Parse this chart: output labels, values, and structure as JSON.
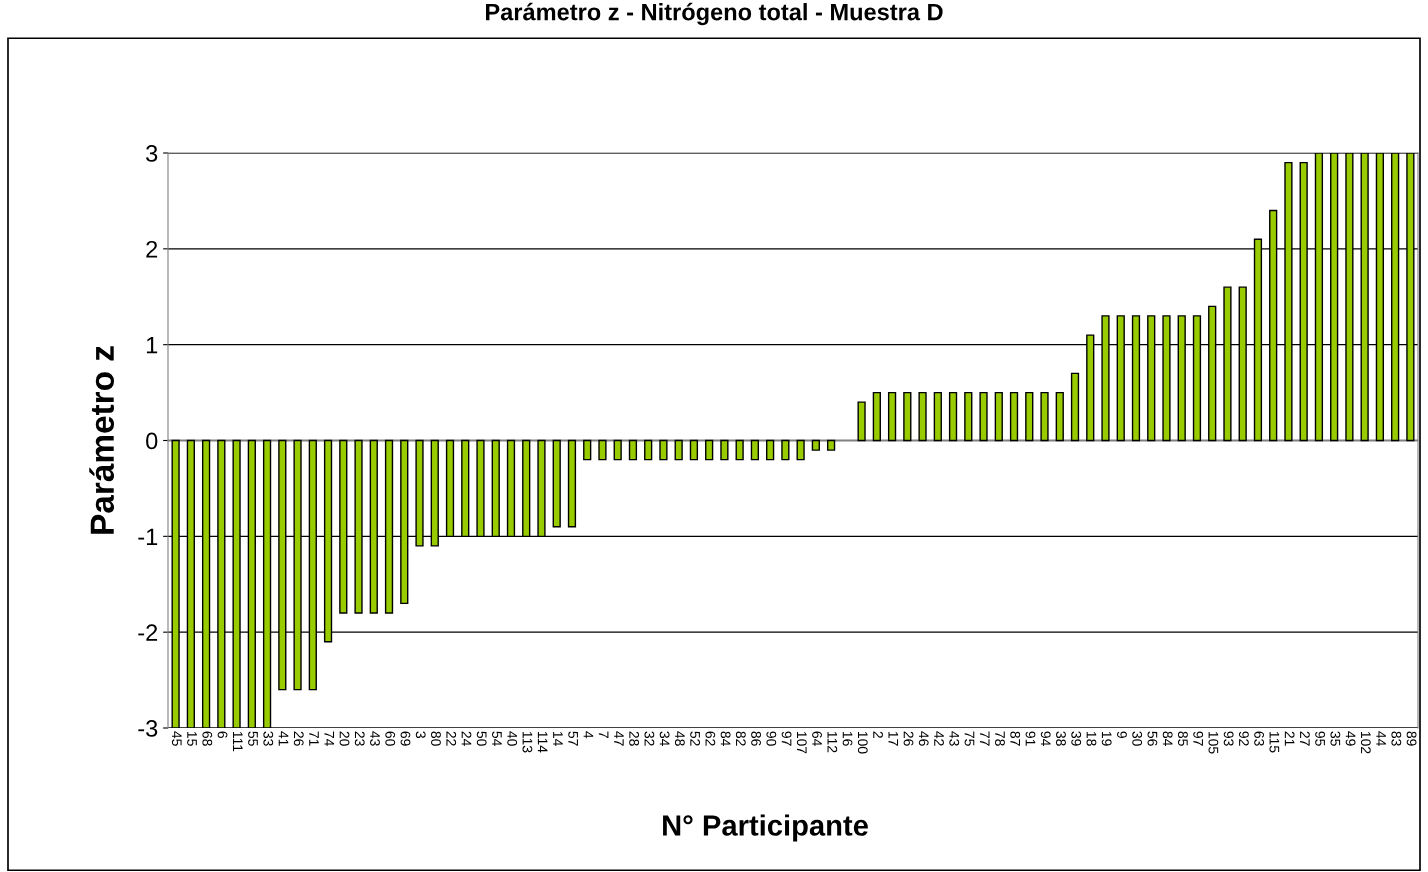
{
  "chart_data": {
    "type": "bar",
    "title": "Parámetro z - Nitrógeno total - Muestra D",
    "xlabel": "N° Participante",
    "ylabel": "Parámetro z",
    "categories": [
      "45",
      "15",
      "68",
      "6",
      "111",
      "55",
      "33",
      "41",
      "26",
      "71",
      "74",
      "20",
      "23",
      "43",
      "60",
      "69",
      "3",
      "80",
      "22",
      "24",
      "50",
      "54",
      "40",
      "113",
      "114",
      "14",
      "57",
      "4",
      "7",
      "47",
      "28",
      "32",
      "34",
      "48",
      "52",
      "62",
      "84",
      "82",
      "86",
      "90",
      "97",
      "107",
      "64",
      "112",
      "16",
      "100",
      "2",
      "17",
      "26",
      "46",
      "42",
      "43",
      "75",
      "77",
      "78",
      "87",
      "91",
      "94",
      "38",
      "39",
      "18",
      "19",
      "9",
      "30",
      "56",
      "84",
      "85",
      "97",
      "105",
      "93",
      "92",
      "63",
      "115",
      "21",
      "27",
      "95",
      "35",
      "49",
      "102",
      "44",
      "83",
      "89"
    ],
    "values": [
      -3,
      -3,
      -3,
      -3,
      -3,
      -3,
      -3,
      -2.6,
      -2.6,
      -2.6,
      -2.1,
      -1.8,
      -1.8,
      -1.8,
      -1.8,
      -1.7,
      -1.1,
      -1.1,
      -1,
      -1,
      -1,
      -1,
      -1,
      -1,
      -1,
      -0.9,
      -0.9,
      -0.2,
      -0.2,
      -0.2,
      -0.2,
      -0.2,
      -0.2,
      -0.2,
      -0.2,
      -0.2,
      -0.2,
      -0.2,
      -0.2,
      -0.2,
      -0.2,
      -0.2,
      -0.1,
      -0.1,
      null,
      0.4,
      0.5,
      0.5,
      0.5,
      0.5,
      0.5,
      0.5,
      0.5,
      0.5,
      0.5,
      0.5,
      0.5,
      0.5,
      0.5,
      0.7,
      1.1,
      1.3,
      1.3,
      1.3,
      1.3,
      1.3,
      1.3,
      1.3,
      1.4,
      1.6,
      1.6,
      2.1,
      2.4,
      2.9,
      2.9,
      3,
      3,
      3,
      3,
      3,
      3,
      3
    ],
    "color": "#99cc00",
    "ylim": [
      -3,
      3
    ],
    "yticks": [
      -3,
      -2,
      -1,
      0,
      1,
      2,
      3
    ],
    "grid": "y",
    "legend": false
  }
}
